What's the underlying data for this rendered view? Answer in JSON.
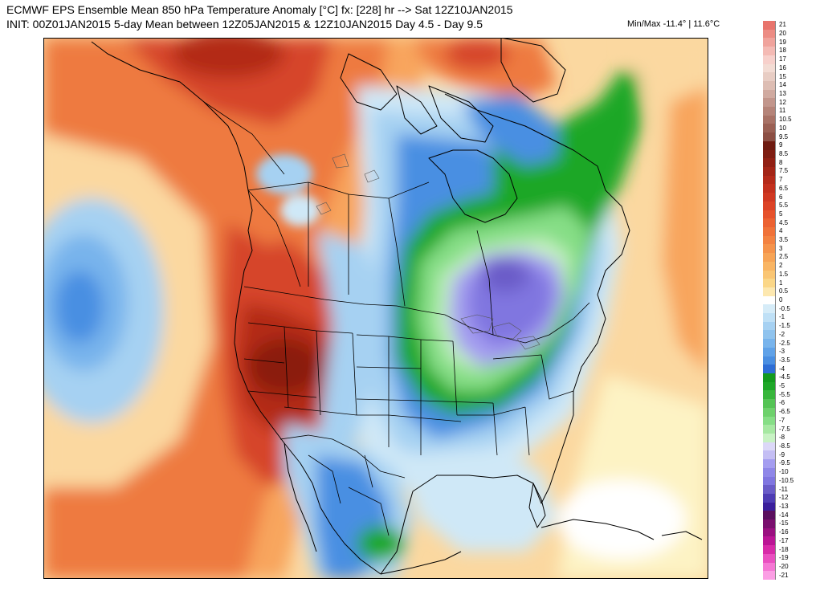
{
  "header": {
    "line1": "ECMWF EPS Ensemble Mean 850 hPa Temperature Anomaly [°C] fx: [228] hr --> Sat 12Z10JAN2015",
    "line2": "INIT: 00Z01JAN2015 5-day Mean between 12Z05JAN2015 & 12Z10JAN2015    Day 4.5 - Day 9.5",
    "minmax": "Min/Max -11.4° | 11.6°C"
  },
  "colors": {
    "warm_max": "#8b1a0c",
    "warm_dark": "#b32a18",
    "warm_red": "#d6452b",
    "warm_orange": "#ee7a3f",
    "warm_light": "#f8a55d",
    "warm_pale": "#fbd8a0",
    "warm_yellow": "#fdf3c4",
    "neutral": "#ffffff",
    "cool_pale": "#cfe8f7",
    "cool_light": "#a6d1f2",
    "cool_med": "#78b4ec",
    "cool_blue": "#4a8fe2",
    "cool_dark": "#2e6ed6",
    "green_dark": "#1ea728",
    "green_light": "#86de86",
    "green_pale": "#c8f2c4",
    "purple_light": "#a49df0",
    "purple_med": "#8076e0",
    "purple_dark": "#6a5cc8",
    "border": "#000000"
  },
  "legend": [
    {
      "label": "21",
      "color": "#e8746c"
    },
    {
      "label": "20",
      "color": "#ec8c84"
    },
    {
      "label": "19",
      "color": "#f0a39c"
    },
    {
      "label": "18",
      "color": "#f4bab4"
    },
    {
      "label": "17",
      "color": "#f7d0cb"
    },
    {
      "label": "16",
      "color": "#f3dcd4"
    },
    {
      "label": "15",
      "color": "#e8cdc4"
    },
    {
      "label": "14",
      "color": "#ddbdb3"
    },
    {
      "label": "13",
      "color": "#d0aaa0"
    },
    {
      "label": "12",
      "color": "#c2968c"
    },
    {
      "label": "11",
      "color": "#b58479"
    },
    {
      "label": "10.5",
      "color": "#a87266"
    },
    {
      "label": "10",
      "color": "#9a6054"
    },
    {
      "label": "9.5",
      "color": "#8c4f44"
    },
    {
      "label": "9",
      "color": "#6e1a10"
    },
    {
      "label": "8.5",
      "color": "#7f1d12"
    },
    {
      "label": "8",
      "color": "#912014"
    },
    {
      "label": "7.5",
      "color": "#a32517"
    },
    {
      "label": "7",
      "color": "#b42a1a"
    },
    {
      "label": "6.5",
      "color": "#c3301e"
    },
    {
      "label": "6",
      "color": "#d03822"
    },
    {
      "label": "5.5",
      "color": "#dc4326"
    },
    {
      "label": "5",
      "color": "#e6522c"
    },
    {
      "label": "4.5",
      "color": "#ec6232"
    },
    {
      "label": "4",
      "color": "#f07239"
    },
    {
      "label": "3.5",
      "color": "#f38241"
    },
    {
      "label": "3",
      "color": "#f5934b"
    },
    {
      "label": "2.5",
      "color": "#f7a456"
    },
    {
      "label": "2",
      "color": "#f9b564"
    },
    {
      "label": "1.5",
      "color": "#fac674"
    },
    {
      "label": "1",
      "color": "#fbd788"
    },
    {
      "label": "0.5",
      "color": "#fde8b0"
    },
    {
      "label": "0",
      "color": "#ffffff"
    },
    {
      "label": "-0.5",
      "color": "#d6ecf8"
    },
    {
      "label": "-1",
      "color": "#bfe0f6"
    },
    {
      "label": "-1.5",
      "color": "#a6d1f2"
    },
    {
      "label": "-2",
      "color": "#8fc3ee"
    },
    {
      "label": "-2.5",
      "color": "#78b4ec"
    },
    {
      "label": "-3",
      "color": "#60a2e8"
    },
    {
      "label": "-3.5",
      "color": "#4a8fe2"
    },
    {
      "label": "-4",
      "color": "#2e6ed6"
    },
    {
      "label": "-4.5",
      "color": "#139a1e"
    },
    {
      "label": "-5",
      "color": "#1ea728"
    },
    {
      "label": "-5.5",
      "color": "#38b63c"
    },
    {
      "label": "-6",
      "color": "#55c455"
    },
    {
      "label": "-6.5",
      "color": "#6ed16c"
    },
    {
      "label": "-7",
      "color": "#86de86"
    },
    {
      "label": "-7.5",
      "color": "#a6e8a2"
    },
    {
      "label": "-8",
      "color": "#c8f2c4"
    },
    {
      "label": "-8.5",
      "color": "#dcd8f8"
    },
    {
      "label": "-9",
      "color": "#c4bef4"
    },
    {
      "label": "-9.5",
      "color": "#a49df0"
    },
    {
      "label": "-10",
      "color": "#8f87e8"
    },
    {
      "label": "-10.5",
      "color": "#8076e0"
    },
    {
      "label": "-11",
      "color": "#6a5cc8"
    },
    {
      "label": "-12",
      "color": "#4e3db4"
    },
    {
      "label": "-13",
      "color": "#3a1f9c"
    },
    {
      "label": "-14",
      "color": "#5a0f5e"
    },
    {
      "label": "-15",
      "color": "#7a0f6e"
    },
    {
      "label": "-16",
      "color": "#9a1080"
    },
    {
      "label": "-17",
      "color": "#bb1595"
    },
    {
      "label": "-18",
      "color": "#d82aa8"
    },
    {
      "label": "-19",
      "color": "#ea4fc0"
    },
    {
      "label": "-20",
      "color": "#f577d4"
    },
    {
      "label": "-21",
      "color": "#fb9ee4"
    }
  ]
}
